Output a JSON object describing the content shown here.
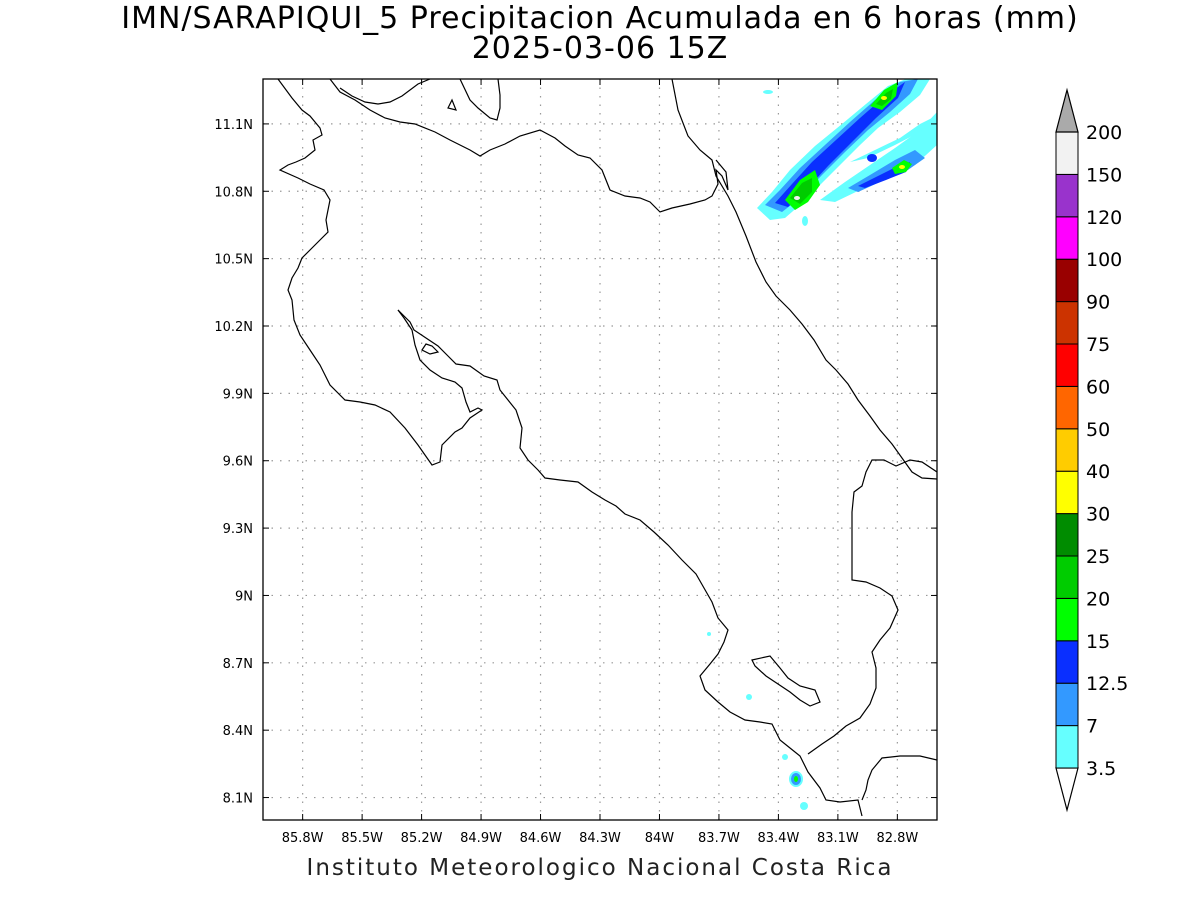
{
  "header": {
    "title": "IMN/SARAPIQUI_5 Precipitacion Acumulada en 6 horas (mm)",
    "subtitle": "2025-03-06 15Z"
  },
  "map": {
    "lon_labels": [
      "85.8W",
      "85.5W",
      "85.2W",
      "84.9W",
      "84.6W",
      "84.3W",
      "84W",
      "83.7W",
      "83.4W",
      "83.1W",
      "82.8W"
    ],
    "lat_labels": [
      "11.1N",
      "10.8N",
      "10.5N",
      "10.2N",
      "9.9N",
      "9.6N",
      "9.3N",
      "9N",
      "8.7N",
      "8.4N",
      "8.1N"
    ],
    "lon_range": [
      -86.0,
      -82.6
    ],
    "lat_range": [
      8.0,
      11.3
    ],
    "grid": "dotted",
    "coastline_color": "#000000"
  },
  "colorbar": {
    "levels": [
      "3.5",
      "7",
      "12.5",
      "15",
      "20",
      "25",
      "30",
      "40",
      "50",
      "60",
      "75",
      "90",
      "100",
      "120",
      "150",
      "200"
    ],
    "colors": [
      "#66ffff",
      "#3399ff",
      "#0a2fff",
      "#00ff00",
      "#00cc00",
      "#008c00",
      "#ffff00",
      "#ffcc00",
      "#ff6600",
      "#ff0000",
      "#cc3300",
      "#990000",
      "#ff00ff",
      "#9933cc",
      "#f2f2f2",
      "#aaaaaa"
    ]
  },
  "footer": {
    "credit": "Instituto Meteorologico Nacional Costa Rica"
  }
}
